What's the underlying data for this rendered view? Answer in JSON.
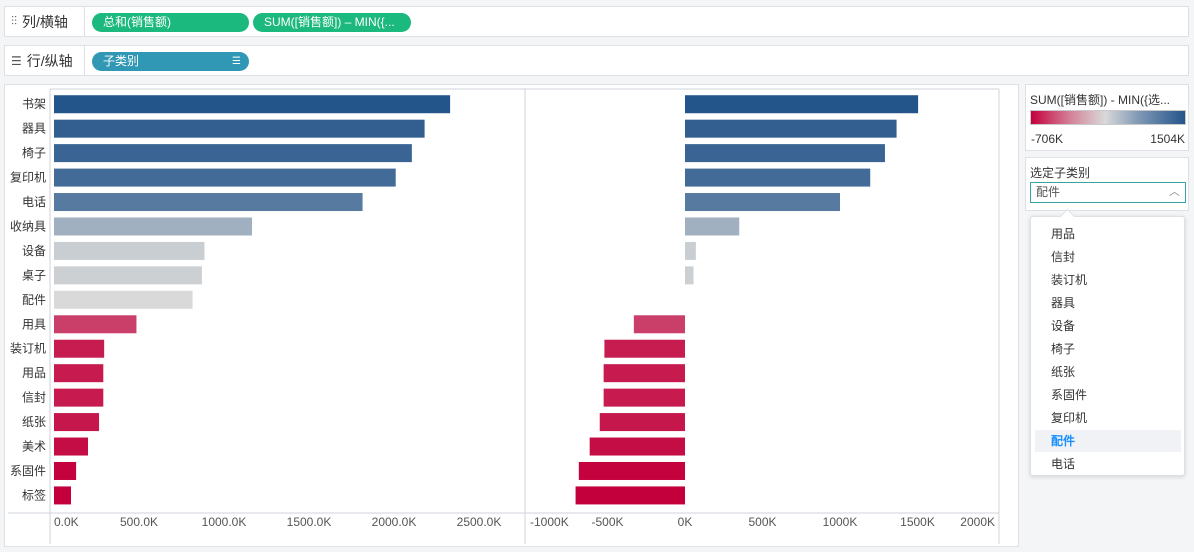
{
  "columns_shelf": {
    "label": "列/横轴",
    "icon": "columns-icon",
    "pills": [
      "总和(销售额)",
      "SUM([销售额]) – MIN({..."
    ]
  },
  "rows_shelf": {
    "label": "行/纵轴",
    "icon": "rows-icon",
    "pills": [
      "子类别"
    ]
  },
  "legend": {
    "title": "SUM([销售额]) - MIN({选...",
    "min_label": "-706K",
    "max_label": "1504K",
    "colors": {
      "low": "#c4003c",
      "mid": "#d9d9d9",
      "high": "#24558a"
    }
  },
  "filter": {
    "title": "选定子类别",
    "selected": "配件",
    "options": [
      "用品",
      "信封",
      "装订机",
      "器具",
      "设备",
      "椅子",
      "纸张",
      "系固件",
      "复印机",
      "配件",
      "电话"
    ]
  },
  "chart_data": [
    {
      "type": "bar",
      "orientation": "horizontal",
      "title": "总和(销售额)",
      "categories": [
        "书架",
        "器具",
        "椅子",
        "复印机",
        "电话",
        "收纳具",
        "设备",
        "桌子",
        "配件",
        "用具",
        "装订机",
        "用品",
        "信封",
        "纸张",
        "美术",
        "系固件",
        "标签"
      ],
      "values": [
        2330,
        2180,
        2105,
        2010,
        1815,
        1165,
        885,
        870,
        815,
        485,
        295,
        290,
        290,
        265,
        200,
        130,
        100
      ],
      "color_values": [
        1504,
        1365,
        1290,
        1195,
        1000,
        350,
        70,
        55,
        0,
        -330,
        -520,
        -525,
        -525,
        -550,
        -615,
        -685,
        -706
      ],
      "xlim": [
        0,
        2500
      ],
      "x_ticks": [
        "0.0K",
        "500.0K",
        "1000.0K",
        "1500.0K",
        "2000.0K",
        "2500.0K"
      ]
    },
    {
      "type": "bar",
      "orientation": "horizontal",
      "title": "SUM([销售额]) – MIN({选定子类别})",
      "categories": [
        "书架",
        "器具",
        "椅子",
        "复印机",
        "电话",
        "收纳具",
        "设备",
        "桌子",
        "配件",
        "用具",
        "装订机",
        "用品",
        "信封",
        "纸张",
        "美术",
        "系固件",
        "标签"
      ],
      "values": [
        1504,
        1365,
        1290,
        1195,
        1000,
        350,
        70,
        55,
        0,
        -330,
        -520,
        -525,
        -525,
        -550,
        -615,
        -685,
        -706
      ],
      "xlim": [
        -1000,
        2000
      ],
      "x_ticks": [
        "-1000K",
        "-500K",
        "0K",
        "500K",
        "1000K",
        "1500K",
        "2000K"
      ]
    }
  ]
}
